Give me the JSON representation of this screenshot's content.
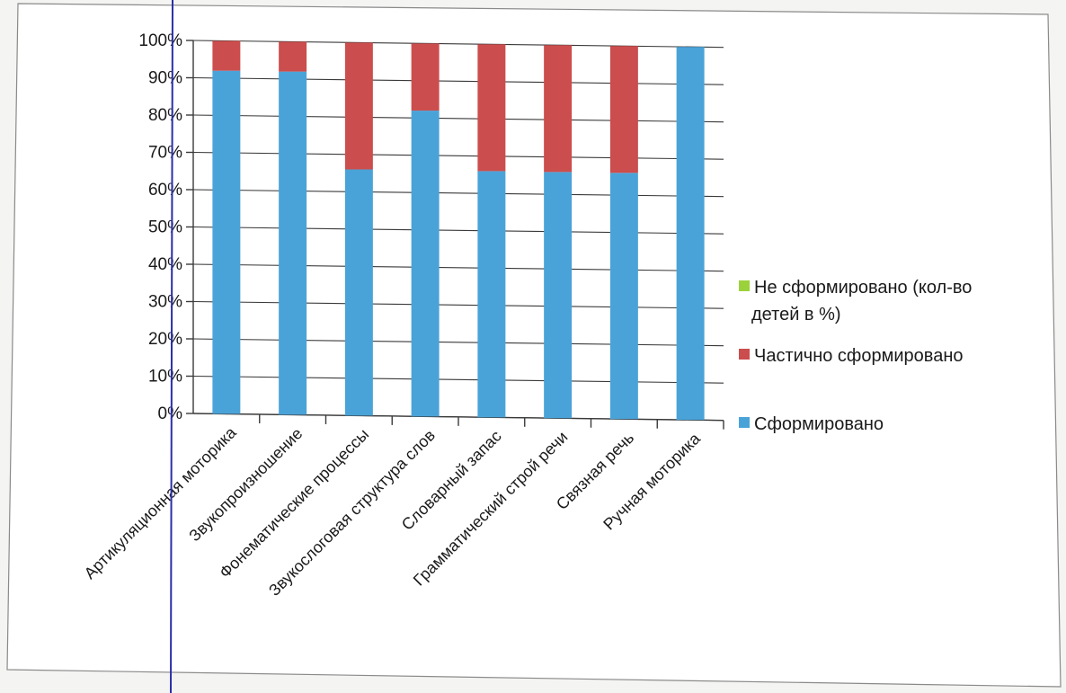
{
  "chart_data": {
    "type": "bar",
    "stacked": true,
    "percent_stacked": true,
    "categories": [
      "Артикуляционная моторика",
      "Звукопроизношение",
      "Фонематические процессы",
      "Звукослоговая структура слов",
      "Словарный запас",
      "Грамматический строй речи",
      "Связная речь",
      "Ручная моторика"
    ],
    "series": [
      {
        "name": "Сформировано",
        "color": "#4aa3d8",
        "values": [
          92,
          92,
          66,
          82,
          66,
          66,
          66,
          100
        ]
      },
      {
        "name": "Частично сформировано",
        "color": "#cc4d4d",
        "values": [
          8,
          8,
          34,
          18,
          34,
          34,
          34,
          0
        ]
      },
      {
        "name": "Не сформировано (кол-во детей в %)",
        "color": "#9bd23c",
        "values": [
          0,
          0,
          0,
          0,
          0,
          0,
          0,
          0
        ]
      }
    ],
    "y_ticks": [
      "0%",
      "10%",
      "20%",
      "30%",
      "40%",
      "50%",
      "60%",
      "70%",
      "80%",
      "90%",
      "100%"
    ],
    "ylim": [
      0,
      100
    ],
    "grid": true,
    "legend_position": "right",
    "legend_items": [
      {
        "label_lines": [
          "Не сформировано (кол-во",
          "детей в %)"
        ],
        "color": "#9bd23c"
      },
      {
        "label_lines": [
          "Частично сформировано"
        ],
        "color": "#cc4d4d"
      },
      {
        "label_lines": [
          "Сформировано"
        ],
        "color": "#4aa3d8"
      }
    ]
  }
}
